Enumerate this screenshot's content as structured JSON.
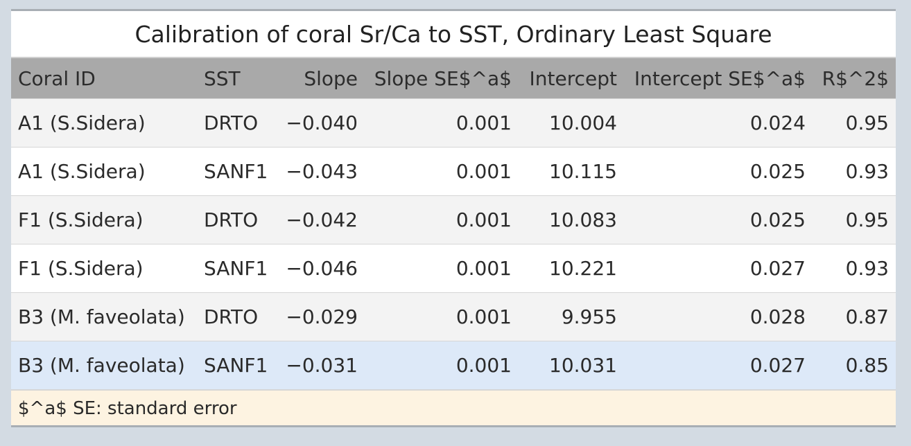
{
  "title": "Calibration of coral Sr/Ca to SST, Ordinary Least Square",
  "table": {
    "columns": [
      "Coral ID",
      "SST",
      "Slope",
      "Slope SE$^a$",
      "Intercept",
      "Intercept SE$^a$",
      "R$^2$"
    ],
    "rows": [
      [
        "A1 (S.Sidera)",
        "DRTO",
        "−0.040",
        "0.001",
        "10.004",
        "0.024",
        "0.95"
      ],
      [
        "A1 (S.Sidera)",
        "SANF1",
        "−0.043",
        "0.001",
        "10.115",
        "0.025",
        "0.93"
      ],
      [
        "F1 (S.Sidera)",
        "DRTO",
        "−0.042",
        "0.001",
        "10.083",
        "0.025",
        "0.95"
      ],
      [
        "F1 (S.Sidera)",
        "SANF1",
        "−0.046",
        "0.001",
        "10.221",
        "0.027",
        "0.93"
      ],
      [
        "B3 (M. faveolata)",
        "DRTO",
        "−0.029",
        "0.001",
        "9.955",
        "0.028",
        "0.87"
      ],
      [
        "B3 (M. faveolata)",
        "SANF1",
        "−0.031",
        "0.001",
        "10.031",
        "0.027",
        "0.85"
      ]
    ]
  },
  "footnote": "$^a$ SE: standard error"
}
